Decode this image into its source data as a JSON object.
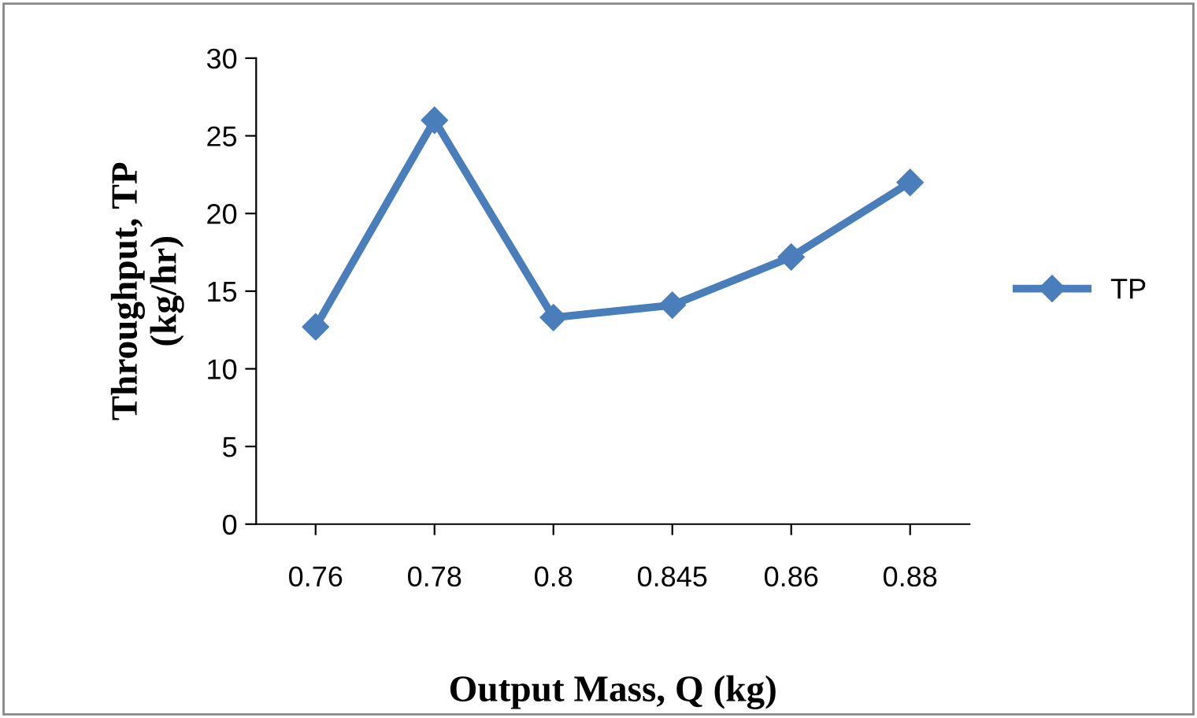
{
  "chart_data": {
    "type": "line",
    "xlabel": "Output Mass, Q (kg)",
    "ylabel": "Throughput, TP\n(kg/hr)",
    "categories": [
      "0.76",
      "0.78",
      "0.8",
      "0.845",
      "0.86",
      "0.88"
    ],
    "series": [
      {
        "name": "TP",
        "color": "#4a7ebb",
        "values": [
          12.7,
          26.0,
          13.3,
          14.1,
          17.2,
          22.0
        ]
      }
    ],
    "ylim": [
      0,
      30
    ],
    "yticks": [
      0,
      5,
      10,
      15,
      20,
      25,
      30
    ],
    "grid": false,
    "legend": "right",
    "marker": "diamond",
    "line_style": "solid"
  }
}
